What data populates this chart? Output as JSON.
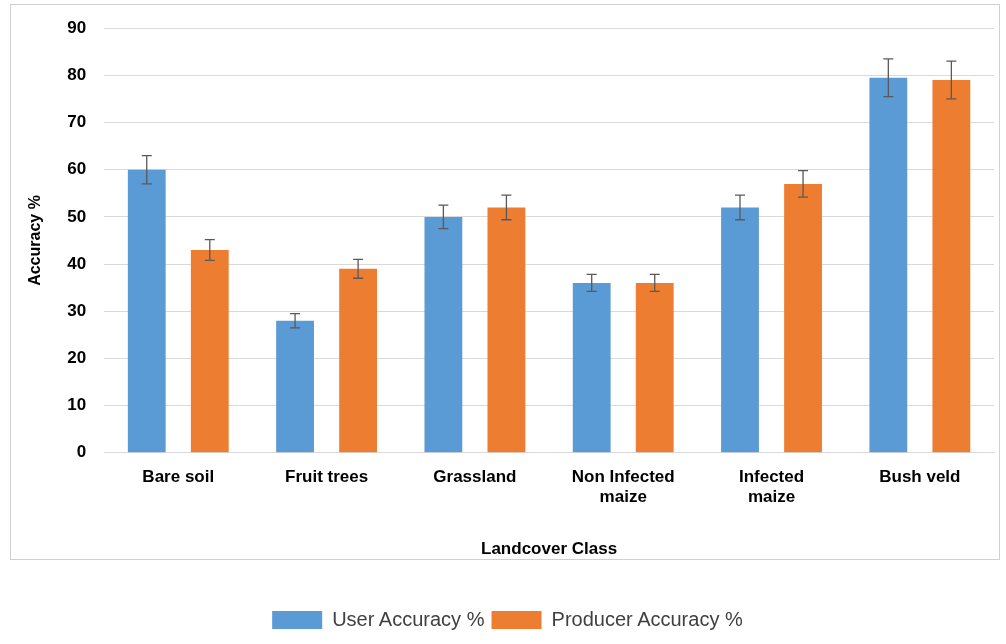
{
  "chart_data": {
    "type": "bar",
    "xlabel": "Landcover Class",
    "ylabel": "Accuracy %",
    "categories": [
      "Bare soil",
      "Fruit trees",
      "Grassland",
      "Non Infected maize",
      "Infected maize",
      "Bush veld"
    ],
    "series": [
      {
        "name": "User Accuracy %",
        "color": "#5b9bd5",
        "values": [
          60,
          28,
          50,
          36,
          52,
          79.5
        ],
        "errors": [
          3,
          1.5,
          2.5,
          1.8,
          2.6,
          4
        ]
      },
      {
        "name": "Producer Accuracy %",
        "color": "#ed7d31",
        "values": [
          43,
          39,
          52,
          36,
          57,
          79
        ],
        "errors": [
          2.2,
          2,
          2.6,
          1.8,
          2.8,
          4
        ]
      }
    ],
    "ylim": [
      0,
      90
    ],
    "yticks": [
      0,
      10,
      20,
      30,
      40,
      50,
      60,
      70,
      80,
      90
    ],
    "grid": "y",
    "legend": "bottom"
  }
}
